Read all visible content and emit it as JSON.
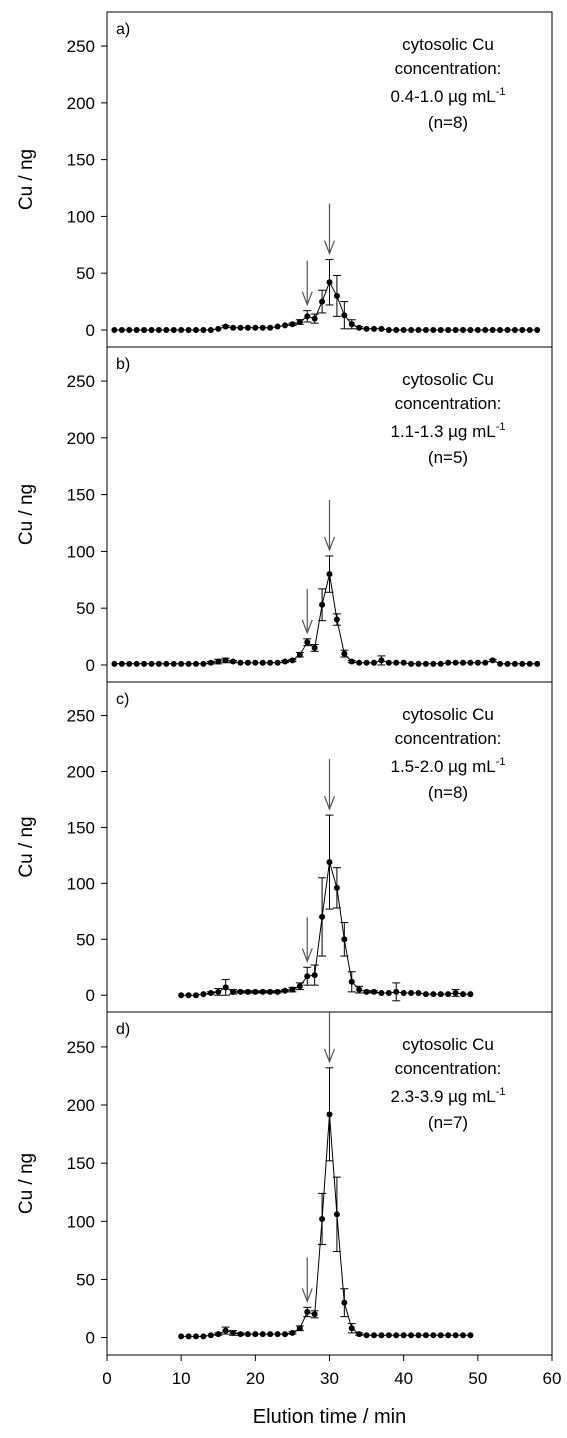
{
  "chart_data": {
    "type": "scatter",
    "xlabel": "Elution time / min",
    "xlim": [
      0,
      60
    ],
    "xticks": [
      "0",
      "10",
      "20",
      "30",
      "40",
      "50",
      "60"
    ],
    "yticks": [
      "0",
      "50",
      "100",
      "150",
      "200",
      "250"
    ],
    "ylim": [
      -15,
      280
    ],
    "panels": [
      {
        "label": "a)",
        "ylabel": "Cu / ng",
        "annotation": [
          "cytosolic Cu",
          "concentration:",
          "0.4-1.0 µg mL",
          "(n=8)"
        ],
        "annotation_superscript": "-1",
        "arrows_at": [
          27,
          30
        ],
        "series": [
          {
            "x": [
              1,
              2,
              3,
              4,
              5,
              6,
              7,
              8,
              9,
              10,
              11,
              12,
              13,
              14,
              15,
              16,
              17,
              18,
              19,
              20,
              21,
              22,
              23,
              24,
              25,
              26,
              27,
              28,
              29,
              30,
              31,
              32,
              33,
              34,
              35,
              36,
              37,
              38,
              39,
              40,
              41,
              42,
              43,
              44,
              45,
              46,
              47,
              48,
              49,
              50,
              51,
              52,
              53,
              54,
              55,
              56,
              57,
              58
            ],
            "y": [
              0,
              0,
              0,
              0,
              0,
              0,
              0,
              0,
              0,
              0,
              0,
              0,
              0,
              0,
              1,
              3,
              2,
              2,
              2,
              2,
              2,
              2,
              3,
              4,
              5,
              7,
              12,
              10,
              25,
              42,
              30,
              13,
              5,
              2,
              1,
              1,
              1,
              0,
              0,
              0,
              0,
              0,
              0,
              0,
              0,
              0,
              0,
              0,
              0,
              0,
              0,
              0,
              0,
              0,
              0,
              0,
              0,
              0
            ],
            "err": [
              0,
              0,
              0,
              0,
              0,
              0,
              0,
              0,
              0,
              0,
              0,
              0,
              0,
              0,
              0,
              1,
              0,
              0,
              0,
              0,
              0,
              0,
              0,
              0,
              1,
              2,
              5,
              4,
              10,
              20,
              18,
              12,
              4,
              1,
              0,
              0,
              0,
              0,
              0,
              0,
              0,
              0,
              0,
              0,
              0,
              0,
              0,
              0,
              0,
              0,
              0,
              0,
              0,
              0,
              0,
              0,
              0,
              0
            ]
          }
        ]
      },
      {
        "label": "b)",
        "ylabel": "Cu / ng",
        "annotation": [
          "cytosolic Cu",
          "concentration:",
          "1.1-1.3 µg mL",
          "(n=5)"
        ],
        "annotation_superscript": "-1",
        "arrows_at": [
          27,
          30
        ],
        "series": [
          {
            "x": [
              1,
              2,
              3,
              4,
              5,
              6,
              7,
              8,
              9,
              10,
              11,
              12,
              13,
              14,
              15,
              16,
              17,
              18,
              19,
              20,
              21,
              22,
              23,
              24,
              25,
              26,
              27,
              28,
              29,
              30,
              31,
              32,
              33,
              34,
              35,
              36,
              37,
              38,
              39,
              40,
              41,
              42,
              43,
              44,
              45,
              46,
              47,
              48,
              49,
              50,
              51,
              52,
              53,
              54,
              55,
              56,
              57,
              58
            ],
            "y": [
              1,
              1,
              1,
              1,
              1,
              1,
              1,
              1,
              1,
              1,
              1,
              1,
              1,
              2,
              3,
              4,
              3,
              2,
              2,
              2,
              2,
              2,
              2,
              3,
              4,
              9,
              20,
              15,
              53,
              80,
              40,
              10,
              3,
              2,
              2,
              2,
              4,
              2,
              2,
              2,
              1,
              1,
              1,
              1,
              1,
              2,
              2,
              2,
              2,
              2,
              2,
              4,
              1,
              1,
              1,
              1,
              1,
              1
            ],
            "err": [
              0,
              0,
              0,
              0,
              0,
              0,
              0,
              0,
              0,
              0,
              0,
              0,
              0,
              1,
              2,
              2,
              1,
              0,
              0,
              0,
              0,
              0,
              0,
              1,
              1,
              2,
              3,
              3,
              14,
              16,
              5,
              3,
              1,
              0,
              0,
              0,
              4,
              0,
              0,
              0,
              0,
              0,
              0,
              0,
              0,
              0,
              0,
              0,
              0,
              0,
              0,
              1,
              0,
              0,
              0,
              0,
              0,
              0
            ]
          }
        ]
      },
      {
        "label": "c)",
        "ylabel": "Cu / ng",
        "annotation": [
          "cytosolic Cu",
          "concentration:",
          "1.5-2.0 µg mL",
          "(n=8)"
        ],
        "annotation_superscript": "-1",
        "arrows_at": [
          27,
          30
        ],
        "series": [
          {
            "x": [
              10,
              11,
              12,
              13,
              14,
              15,
              16,
              17,
              18,
              19,
              20,
              21,
              22,
              23,
              24,
              25,
              26,
              27,
              28,
              29,
              30,
              31,
              32,
              33,
              34,
              35,
              36,
              37,
              38,
              39,
              40,
              41,
              42,
              43,
              44,
              45,
              46,
              47,
              48,
              49
            ],
            "y": [
              0,
              0,
              0,
              1,
              2,
              3,
              7,
              3,
              3,
              3,
              3,
              3,
              3,
              3,
              4,
              5,
              8,
              17,
              18,
              70,
              119,
              96,
              50,
              12,
              5,
              3,
              3,
              2,
              2,
              3,
              2,
              2,
              2,
              1,
              1,
              1,
              1,
              2,
              1,
              1
            ],
            "err": [
              0,
              0,
              0,
              0,
              1,
              3,
              7,
              2,
              1,
              1,
              1,
              1,
              1,
              1,
              1,
              2,
              3,
              8,
              9,
              35,
              42,
              18,
              15,
              9,
              3,
              1,
              1,
              0,
              0,
              8,
              0,
              0,
              0,
              0,
              0,
              0,
              0,
              3,
              0,
              0
            ]
          }
        ]
      },
      {
        "label": "d)",
        "ylabel": "Cu / ng",
        "annotation": [
          "cytosolic Cu",
          "concentration:",
          "2.3-3.9 µg mL",
          "(n=7)"
        ],
        "annotation_superscript": "-1",
        "arrows_at": [
          27,
          30
        ],
        "series": [
          {
            "x": [
              10,
              11,
              12,
              13,
              14,
              15,
              16,
              17,
              18,
              19,
              20,
              21,
              22,
              23,
              24,
              25,
              26,
              27,
              28,
              29,
              30,
              31,
              32,
              33,
              34,
              35,
              36,
              37,
              38,
              39,
              40,
              41,
              42,
              43,
              44,
              45,
              46,
              47,
              48,
              49
            ],
            "y": [
              1,
              1,
              1,
              1,
              2,
              3,
              6,
              4,
              3,
              3,
              3,
              3,
              3,
              3,
              3,
              4,
              8,
              22,
              20,
              102,
              192,
              106,
              30,
              8,
              3,
              2,
              2,
              2,
              2,
              2,
              2,
              2,
              2,
              2,
              2,
              2,
              2,
              2,
              2,
              2
            ],
            "err": [
              0,
              0,
              0,
              0,
              0,
              1,
              3,
              2,
              1,
              0,
              0,
              0,
              0,
              0,
              0,
              1,
              2,
              4,
              3,
              22,
              40,
              32,
              12,
              4,
              1,
              0,
              0,
              0,
              0,
              0,
              0,
              0,
              0,
              0,
              0,
              0,
              0,
              0,
              0,
              0
            ]
          }
        ]
      }
    ]
  }
}
